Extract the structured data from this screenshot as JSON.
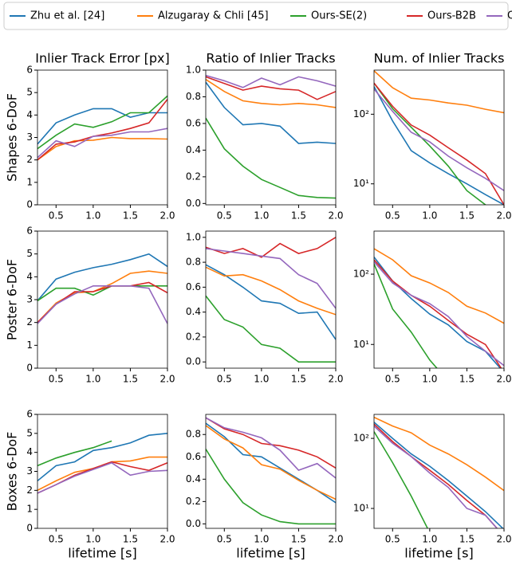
{
  "legend": [
    {
      "name": "Zhu et al. [24]",
      "color": "#1f77b4"
    },
    {
      "name": "Alzugaray & Chli [45]",
      "color": "#ff7f0e"
    },
    {
      "name": "Ours-SE(2)",
      "color": "#2ca02c"
    },
    {
      "name": "Ours-B2B",
      "color": "#d62728"
    },
    {
      "name": "Ours",
      "color": "#9467bd"
    }
  ],
  "chart_data": [
    {
      "type": "line",
      "title": "Inlier Track Error [px]",
      "ylabel": "Shapes 6-DoF",
      "x": [
        0.25,
        0.5,
        0.75,
        1.0,
        1.25,
        1.5,
        1.75,
        2.0
      ],
      "xlim": [
        0.25,
        2.0
      ],
      "xticks": [
        0.5,
        {
          "value": 1,
          "label": "1.0"
        },
        1.5,
        {
          "value": 2,
          "label": "2.0"
        }
      ],
      "ylim": [
        0,
        6
      ],
      "yticks": [
        0,
        1,
        2,
        3,
        4,
        5,
        6
      ],
      "series": [
        {
          "values": [
            2.7,
            3.65,
            4.0,
            4.28,
            4.28,
            3.9,
            4.1,
            4.1
          ]
        },
        {
          "values": [
            2.0,
            2.6,
            2.85,
            2.88,
            3.0,
            2.95,
            2.95,
            2.93
          ]
        },
        {
          "values": [
            2.5,
            3.1,
            3.6,
            3.45,
            3.7,
            4.1,
            4.1,
            4.85
          ]
        },
        {
          "values": [
            2.0,
            2.7,
            2.8,
            3.05,
            3.2,
            3.4,
            3.65,
            4.7
          ]
        },
        {
          "values": [
            2.1,
            2.85,
            2.6,
            3.05,
            3.1,
            3.25,
            3.25,
            3.4
          ]
        }
      ]
    },
    {
      "type": "line",
      "title": "Ratio of Inlier Tracks",
      "x": [
        0.25,
        0.5,
        0.75,
        1.0,
        1.25,
        1.5,
        1.75,
        2.0
      ],
      "xlim": [
        0.25,
        2.0
      ],
      "xticks": [
        0.5,
        {
          "value": 1,
          "label": "1.0"
        },
        1.5,
        {
          "value": 2,
          "label": "2.0"
        }
      ],
      "ylim": [
        -0.01,
        1.0
      ],
      "yticks": [
        {
          "value": 0,
          "label": "0.0"
        },
        0.2,
        0.4,
        0.6,
        0.8,
        {
          "value": 1,
          "label": "1.0"
        }
      ],
      "series": [
        {
          "values": [
            0.91,
            0.72,
            0.59,
            0.6,
            0.58,
            0.45,
            0.46,
            0.45
          ]
        },
        {
          "values": [
            0.93,
            0.84,
            0.77,
            0.75,
            0.74,
            0.75,
            0.74,
            0.72
          ]
        },
        {
          "values": [
            0.64,
            0.41,
            0.28,
            0.18,
            0.12,
            0.06,
            0.045,
            0.04
          ]
        },
        {
          "values": [
            0.95,
            0.9,
            0.85,
            0.88,
            0.86,
            0.85,
            0.78,
            0.84
          ]
        },
        {
          "values": [
            0.96,
            0.92,
            0.87,
            0.94,
            0.89,
            0.95,
            0.92,
            0.88
          ]
        }
      ]
    },
    {
      "type": "line",
      "title": "Num. of Inlier Tracks",
      "yscale": "log",
      "x": [
        0.25,
        0.5,
        0.75,
        1.0,
        1.25,
        1.5,
        1.75,
        2.0
      ],
      "xlim": [
        0.25,
        2.0
      ],
      "xticks": [
        0.5,
        {
          "value": 1,
          "label": "1.0"
        },
        1.5,
        {
          "value": 2,
          "label": "2.0"
        }
      ],
      "ylim": [
        5,
        430
      ],
      "yticks": [
        {
          "value": 10,
          "label": "10¹"
        },
        {
          "value": 100,
          "label": "10²"
        }
      ],
      "series": [
        {
          "values": [
            250,
            80,
            30,
            20,
            14,
            10,
            7,
            5
          ]
        },
        {
          "values": [
            420,
            240,
            170,
            160,
            145,
            135,
            118,
            105
          ]
        },
        {
          "values": [
            280,
            120,
            65,
            35,
            18,
            8,
            5,
            3
          ]
        },
        {
          "values": [
            280,
            130,
            70,
            50,
            33,
            22,
            14,
            5
          ]
        },
        {
          "values": [
            230,
            110,
            55,
            40,
            25,
            17,
            12,
            8
          ]
        }
      ]
    },
    {
      "type": "line",
      "ylabel": "Poster 6-DoF",
      "x": [
        0.25,
        0.5,
        0.75,
        1.0,
        1.25,
        1.5,
        1.75,
        2.0
      ],
      "xlim": [
        0.25,
        2.0
      ],
      "xticks": [
        0.5,
        {
          "value": 1,
          "label": "1.0"
        },
        1.5,
        {
          "value": 2,
          "label": "2.0"
        }
      ],
      "ylim": [
        0,
        6
      ],
      "yticks": [
        0,
        1,
        2,
        3,
        4,
        5,
        6
      ],
      "series": [
        {
          "values": [
            2.95,
            3.9,
            4.2,
            4.4,
            4.55,
            4.75,
            5.0,
            4.45
          ]
        },
        {
          "values": [
            2.0,
            2.85,
            3.3,
            3.35,
            3.7,
            4.15,
            4.25,
            4.15
          ]
        },
        {
          "values": [
            2.95,
            3.5,
            3.5,
            3.2,
            3.6,
            3.6,
            3.6,
            3.6
          ]
        },
        {
          "values": [
            2.0,
            2.8,
            3.35,
            3.35,
            3.6,
            3.6,
            3.75,
            3.3
          ]
        },
        {
          "values": [
            1.95,
            2.8,
            3.25,
            3.6,
            3.6,
            3.6,
            3.5,
            1.95
          ]
        }
      ]
    },
    {
      "type": "line",
      "x": [
        0.25,
        0.5,
        0.75,
        1.0,
        1.25,
        1.5,
        1.75,
        2.0
      ],
      "xlim": [
        0.25,
        2.0
      ],
      "xticks": [
        0.5,
        {
          "value": 1,
          "label": "1.0"
        },
        1.5,
        {
          "value": 2,
          "label": "2.0"
        }
      ],
      "ylim": [
        -0.05,
        1.05
      ],
      "yticks": [
        {
          "value": 0,
          "label": "0.0"
        },
        0.2,
        0.4,
        0.6,
        0.8,
        {
          "value": 1,
          "label": "1.0"
        }
      ],
      "series": [
        {
          "values": [
            0.78,
            0.7,
            0.6,
            0.49,
            0.47,
            0.39,
            0.4,
            0.18
          ]
        },
        {
          "values": [
            0.76,
            0.69,
            0.7,
            0.65,
            0.58,
            0.49,
            0.43,
            0.38
          ]
        },
        {
          "values": [
            0.53,
            0.34,
            0.28,
            0.14,
            0.11,
            0.0,
            0.0,
            0.0
          ]
        },
        {
          "values": [
            0.92,
            0.87,
            0.91,
            0.84,
            0.95,
            0.87,
            0.91,
            1.0
          ]
        },
        {
          "values": [
            0.91,
            0.89,
            0.87,
            0.85,
            0.83,
            0.7,
            0.63,
            0.43
          ]
        }
      ]
    },
    {
      "type": "line",
      "yscale": "log",
      "x": [
        0.25,
        0.5,
        0.75,
        1.0,
        1.25,
        1.5,
        1.75,
        2.0
      ],
      "xlim": [
        0.25,
        2.0
      ],
      "xticks": [
        0.5,
        {
          "value": 1,
          "label": "1.0"
        },
        1.5,
        {
          "value": 2,
          "label": "2.0"
        }
      ],
      "ylim": [
        4.6,
        410
      ],
      "yticks": [
        {
          "value": 10,
          "label": "10¹"
        },
        {
          "value": 100,
          "label": "10²"
        }
      ],
      "series": [
        {
          "values": [
            175,
            80,
            45,
            27,
            19,
            11,
            8,
            4
          ]
        },
        {
          "values": [
            230,
            160,
            95,
            75,
            55,
            35,
            28,
            20
          ]
        },
        {
          "values": [
            140,
            32,
            15,
            6,
            3,
            null,
            null,
            null
          ]
        },
        {
          "values": [
            160,
            80,
            50,
            35,
            22,
            14,
            10,
            4
          ]
        },
        {
          "values": [
            150,
            75,
            50,
            38,
            25,
            13,
            8,
            5
          ]
        }
      ]
    },
    {
      "type": "line",
      "ylabel": "Boxes 6-DoF",
      "xlabel": "lifetime [s]",
      "x": [
        0.25,
        0.5,
        0.75,
        1.0,
        1.25,
        1.5,
        1.75,
        2.0
      ],
      "xlim": [
        0.25,
        2.0
      ],
      "xticks": [
        0.5,
        {
          "value": 1,
          "label": "1.0"
        },
        1.5,
        {
          "value": 2,
          "label": "2.0"
        }
      ],
      "ylim": [
        0,
        6
      ],
      "yticks": [
        0,
        1,
        2,
        3,
        4,
        5,
        6
      ],
      "series": [
        {
          "values": [
            2.5,
            3.3,
            3.5,
            4.1,
            4.25,
            4.5,
            4.9,
            5.0
          ]
        },
        {
          "values": [
            2.0,
            2.5,
            2.95,
            3.15,
            3.5,
            3.55,
            3.75,
            3.75
          ]
        },
        {
          "values": [
            3.3,
            3.7,
            4.0,
            4.25,
            4.6,
            null,
            null,
            null
          ]
        },
        {
          "values": [
            1.85,
            2.3,
            2.8,
            3.15,
            3.5,
            3.25,
            3.05,
            3.45
          ]
        },
        {
          "values": [
            1.85,
            2.3,
            2.75,
            3.1,
            3.45,
            2.8,
            3.0,
            3.05
          ]
        }
      ]
    },
    {
      "type": "line",
      "xlabel": "lifetime [s]",
      "x": [
        0.25,
        0.5,
        0.75,
        1.0,
        1.25,
        1.5,
        1.75,
        2.0
      ],
      "xlim": [
        0.25,
        2.0
      ],
      "xticks": [
        0.5,
        {
          "value": 1,
          "label": "1.0"
        },
        1.5,
        {
          "value": 2,
          "label": "2.0"
        }
      ],
      "ylim": [
        -0.04,
        0.98
      ],
      "yticks": [
        {
          "value": 0,
          "label": "0.0"
        },
        0.2,
        0.4,
        0.6,
        0.8
      ],
      "series": [
        {
          "values": [
            0.9,
            0.78,
            0.62,
            0.6,
            0.5,
            0.4,
            0.3,
            0.19
          ]
        },
        {
          "values": [
            0.88,
            0.76,
            0.68,
            0.53,
            0.49,
            0.39,
            0.3,
            0.22
          ]
        },
        {
          "values": [
            0.67,
            0.4,
            0.19,
            0.08,
            0.02,
            0.0,
            0.0,
            0.0
          ]
        },
        {
          "values": [
            0.95,
            0.85,
            0.8,
            0.72,
            0.7,
            0.66,
            0.6,
            0.5
          ]
        },
        {
          "values": [
            0.95,
            0.86,
            0.82,
            0.77,
            0.66,
            0.48,
            0.54,
            0.41
          ]
        }
      ]
    },
    {
      "type": "line",
      "yscale": "log",
      "xlabel": "lifetime [s]",
      "x": [
        0.25,
        0.5,
        0.75,
        1.0,
        1.25,
        1.5,
        1.75,
        2.0
      ],
      "xlim": [
        0.25,
        2.0
      ],
      "xticks": [
        0.5,
        {
          "value": 1,
          "label": "1.0"
        },
        1.5,
        {
          "value": 2,
          "label": "2.0"
        }
      ],
      "ylim": [
        5.2,
        220
      ],
      "yticks": [
        {
          "value": 10,
          "label": "10¹"
        },
        {
          "value": 100,
          "label": "10²"
        }
      ],
      "series": [
        {
          "values": [
            170,
            100,
            60,
            40,
            25,
            15,
            9,
            5
          ]
        },
        {
          "values": [
            200,
            150,
            120,
            80,
            60,
            42,
            28,
            18
          ]
        },
        {
          "values": [
            125,
            45,
            15,
            4.5,
            null,
            null,
            null,
            null
          ]
        },
        {
          "values": [
            160,
            90,
            55,
            35,
            22,
            13,
            8,
            4
          ]
        },
        {
          "values": [
            150,
            85,
            55,
            32,
            20,
            10,
            8,
            4
          ]
        }
      ]
    }
  ]
}
